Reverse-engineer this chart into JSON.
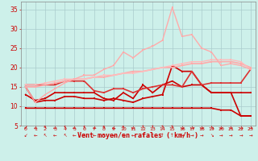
{
  "title": "",
  "xlabel": "Vent moyen/en rafales ( km/h )",
  "xlim": [
    -0.5,
    23.5
  ],
  "ylim": [
    5,
    37
  ],
  "yticks": [
    5,
    10,
    15,
    20,
    25,
    30,
    35
  ],
  "xticks": [
    0,
    1,
    2,
    3,
    4,
    5,
    6,
    7,
    8,
    9,
    10,
    11,
    12,
    13,
    14,
    15,
    16,
    17,
    18,
    19,
    20,
    21,
    22,
    23
  ],
  "bg_color": "#cdf0ea",
  "grid_color": "#aacccc",
  "series": [
    {
      "comment": "flat bottom dark red line ~9.5, drops at end",
      "x": [
        0,
        1,
        2,
        3,
        4,
        5,
        6,
        7,
        8,
        9,
        10,
        11,
        12,
        13,
        14,
        15,
        16,
        17,
        18,
        19,
        20,
        21,
        22,
        23
      ],
      "y": [
        9.5,
        9.5,
        9.5,
        9.5,
        9.5,
        9.5,
        9.5,
        9.5,
        9.5,
        9.5,
        9.5,
        9.5,
        9.5,
        9.5,
        9.5,
        9.5,
        9.5,
        9.5,
        9.5,
        9.5,
        9.0,
        9.0,
        7.5,
        7.5
      ],
      "color": "#cc0000",
      "lw": 1.2,
      "ms": 2.0
    },
    {
      "comment": "dark red bumpy line around 11-13, spikes at 15,16",
      "x": [
        0,
        1,
        2,
        3,
        4,
        5,
        6,
        7,
        8,
        9,
        10,
        11,
        12,
        13,
        14,
        15,
        16,
        17,
        18,
        19,
        20,
        21,
        22,
        23
      ],
      "y": [
        15.0,
        11.0,
        11.5,
        11.5,
        12.5,
        12.5,
        12.0,
        12.0,
        11.5,
        12.0,
        11.5,
        11.0,
        12.0,
        12.5,
        13.0,
        20.5,
        19.0,
        19.0,
        15.5,
        13.5,
        13.5,
        13.5,
        13.5,
        13.5
      ],
      "color": "#cc0000",
      "lw": 1.2,
      "ms": 2.0
    },
    {
      "comment": "medium red bumpy ~12-16 with spike at 15",
      "x": [
        0,
        1,
        2,
        3,
        4,
        5,
        6,
        7,
        8,
        9,
        10,
        11,
        12,
        13,
        14,
        15,
        16,
        17,
        18,
        19,
        20,
        21,
        22,
        23
      ],
      "y": [
        13.0,
        11.5,
        12.0,
        13.5,
        13.5,
        13.5,
        13.5,
        13.5,
        12.0,
        11.5,
        13.5,
        12.0,
        15.5,
        13.5,
        15.5,
        16.5,
        15.0,
        15.5,
        15.5,
        13.5,
        13.5,
        13.5,
        7.5,
        7.5
      ],
      "color": "#cc0000",
      "lw": 1.2,
      "ms": 2.0
    },
    {
      "comment": "slightly pink/red line ~16-17, wavy, stays around 16-19",
      "x": [
        0,
        1,
        2,
        3,
        4,
        5,
        6,
        7,
        8,
        9,
        10,
        11,
        12,
        13,
        14,
        15,
        16,
        17,
        18,
        19,
        20,
        21,
        22,
        23
      ],
      "y": [
        15.5,
        15.5,
        15.5,
        15.5,
        16.5,
        16.5,
        16.5,
        14.0,
        13.5,
        14.5,
        14.5,
        13.5,
        14.5,
        15.0,
        15.5,
        15.5,
        15.0,
        19.0,
        15.5,
        16.0,
        16.0,
        16.0,
        16.0,
        19.5
      ],
      "color": "#dd3333",
      "lw": 1.2,
      "ms": 2.0
    },
    {
      "comment": "smooth light pink line gradually rising ~15 to ~21",
      "x": [
        0,
        1,
        2,
        3,
        4,
        5,
        6,
        7,
        8,
        9,
        10,
        11,
        12,
        13,
        14,
        15,
        16,
        17,
        18,
        19,
        20,
        21,
        22,
        23
      ],
      "y": [
        15.0,
        15.0,
        15.5,
        16.0,
        16.5,
        17.0,
        17.0,
        17.5,
        17.5,
        18.0,
        18.5,
        19.0,
        19.0,
        19.5,
        20.0,
        20.0,
        20.5,
        21.0,
        21.0,
        21.5,
        21.5,
        21.5,
        21.0,
        20.0
      ],
      "color": "#ffaaaa",
      "lw": 1.2,
      "ms": 2.0
    },
    {
      "comment": "lightest pink line rising ~15 to ~21 smoother",
      "x": [
        0,
        1,
        2,
        3,
        4,
        5,
        6,
        7,
        8,
        9,
        10,
        11,
        12,
        13,
        14,
        15,
        16,
        17,
        18,
        19,
        20,
        21,
        22,
        23
      ],
      "y": [
        15.5,
        15.5,
        16.0,
        16.5,
        17.0,
        17.0,
        17.0,
        17.5,
        18.0,
        18.0,
        18.5,
        18.5,
        19.0,
        19.5,
        20.0,
        20.5,
        21.0,
        21.5,
        21.5,
        22.0,
        22.0,
        22.0,
        21.5,
        19.5
      ],
      "color": "#ffbbbb",
      "lw": 1.0,
      "ms": 1.5
    },
    {
      "comment": "lightest pink big spike line - goes up to 35 at x=15, then drops",
      "x": [
        0,
        1,
        2,
        3,
        4,
        5,
        6,
        7,
        8,
        9,
        10,
        11,
        12,
        13,
        14,
        15,
        16,
        17,
        18,
        19,
        20,
        21,
        22,
        23
      ],
      "y": [
        15.0,
        11.0,
        13.0,
        14.5,
        16.0,
        17.0,
        18.0,
        18.0,
        19.5,
        20.5,
        24.0,
        22.5,
        24.5,
        25.5,
        27.0,
        35.5,
        28.0,
        28.5,
        25.0,
        24.0,
        20.5,
        21.0,
        20.5,
        19.5
      ],
      "color": "#ffaaaa",
      "lw": 1.0,
      "ms": 2.0
    }
  ],
  "wind_arrows": [
    "↘",
    "←",
    "↖",
    "←",
    "↖",
    "←",
    "↖",
    "←",
    "↖",
    "←",
    "↖",
    "←",
    "↖",
    "↑",
    "↖",
    "↑",
    "→",
    "→",
    "→",
    "↓",
    "→",
    "→",
    "→",
    "→"
  ]
}
